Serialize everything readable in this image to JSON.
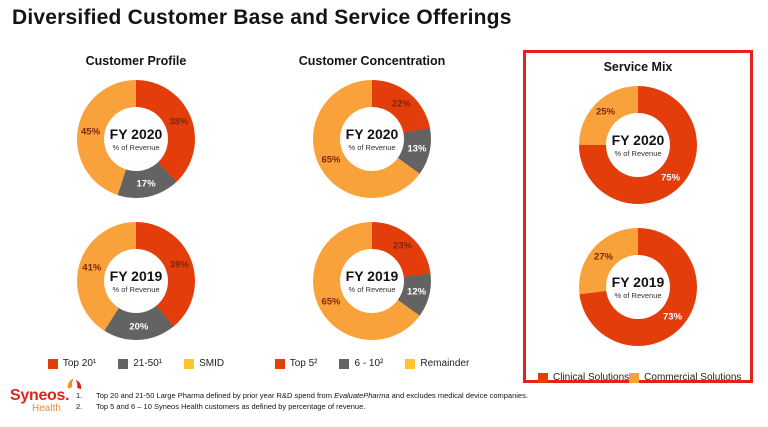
{
  "title": "Diversified Customer Base and Service Offerings",
  "colors": {
    "red": "#e43d0c",
    "orange": "#f9a23c",
    "gray": "#636363",
    "yellow": "#ffc32b",
    "highlight_box": "#e8201a",
    "label_dark": "#7f2605",
    "label_light": "#ffffff",
    "logo_red": "#d8261c",
    "logo_orange": "#f08c2e"
  },
  "columns": [
    {
      "header": "Customer Profile",
      "legend": [
        {
          "label": "Top 20¹",
          "color": "red"
        },
        {
          "label": "21-50¹",
          "color": "gray"
        },
        {
          "label": "SMID",
          "color": "yellow"
        }
      ]
    },
    {
      "header": "Customer Concentration",
      "legend": [
        {
          "label": "Top 5²",
          "color": "red"
        },
        {
          "label": "6 - 10²",
          "color": "gray"
        },
        {
          "label": "Remainder",
          "color": "yellow"
        }
      ]
    },
    {
      "header": "Service Mix",
      "highlighted": true,
      "legend": [
        {
          "label": "Clinical Solutions",
          "color": "red"
        },
        {
          "label": "Commercial Solutions",
          "color": "orange"
        }
      ]
    }
  ],
  "chart_data": [
    {
      "type": "pie",
      "group": "Customer Profile",
      "period": "FY 2020",
      "center_sub": "% of Revenue",
      "series": [
        {
          "name": "Top 20",
          "value": 38,
          "color": "red",
          "label_style": "dark"
        },
        {
          "name": "21-50",
          "value": 17,
          "color": "gray",
          "label_style": "light"
        },
        {
          "name": "SMID",
          "value": 45,
          "color": "orange",
          "label_style": "dark"
        }
      ]
    },
    {
      "type": "pie",
      "group": "Customer Profile",
      "period": "FY 2019",
      "center_sub": "% of Revenue",
      "series": [
        {
          "name": "Top 20",
          "value": 39,
          "color": "red",
          "label_style": "dark"
        },
        {
          "name": "21-50",
          "value": 20,
          "color": "gray",
          "label_style": "light"
        },
        {
          "name": "SMID",
          "value": 41,
          "color": "orange",
          "label_style": "dark"
        }
      ]
    },
    {
      "type": "pie",
      "group": "Customer Concentration",
      "period": "FY 2020",
      "center_sub": "% of Revenue",
      "series": [
        {
          "name": "Top 5",
          "value": 22,
          "color": "red",
          "label_style": "dark"
        },
        {
          "name": "6 - 10",
          "value": 13,
          "color": "gray",
          "label_style": "light"
        },
        {
          "name": "Remainder",
          "value": 65,
          "color": "orange",
          "label_style": "dark"
        }
      ]
    },
    {
      "type": "pie",
      "group": "Customer Concentration",
      "period": "FY 2019",
      "center_sub": "% of Revenue",
      "series": [
        {
          "name": "Top 5",
          "value": 23,
          "color": "red",
          "label_style": "dark"
        },
        {
          "name": "6 - 10",
          "value": 12,
          "color": "gray",
          "label_style": "light"
        },
        {
          "name": "Remainder",
          "value": 65,
          "color": "orange",
          "label_style": "dark"
        }
      ]
    },
    {
      "type": "pie",
      "group": "Service Mix",
      "period": "FY 2020",
      "center_sub": "% of Revenue",
      "series": [
        {
          "name": "Clinical Solutions",
          "value": 75,
          "color": "red",
          "label_style": "light"
        },
        {
          "name": "Commercial Solutions",
          "value": 25,
          "color": "orange",
          "label_style": "dark"
        }
      ]
    },
    {
      "type": "pie",
      "group": "Service Mix",
      "period": "FY 2019",
      "center_sub": "% of Revenue",
      "series": [
        {
          "name": "Clinical Solutions",
          "value": 73,
          "color": "red",
          "label_style": "light"
        },
        {
          "name": "Commercial Solutions",
          "value": 27,
          "color": "orange",
          "label_style": "dark"
        }
      ]
    }
  ],
  "footnotes": [
    {
      "num": "1.",
      "pre": "Top 20 and 21-50 Large Pharma defined by prior year R&D spend from ",
      "italic": "EvaluatePharma",
      "post": " and excludes medical device companies."
    },
    {
      "num": "2.",
      "pre": "Top 5 and 6 – 10 Syneos Health customers as defined by percentage of revenue.",
      "italic": "",
      "post": ""
    }
  ],
  "logo": {
    "brand": "Syneos.",
    "sub": "Health"
  }
}
